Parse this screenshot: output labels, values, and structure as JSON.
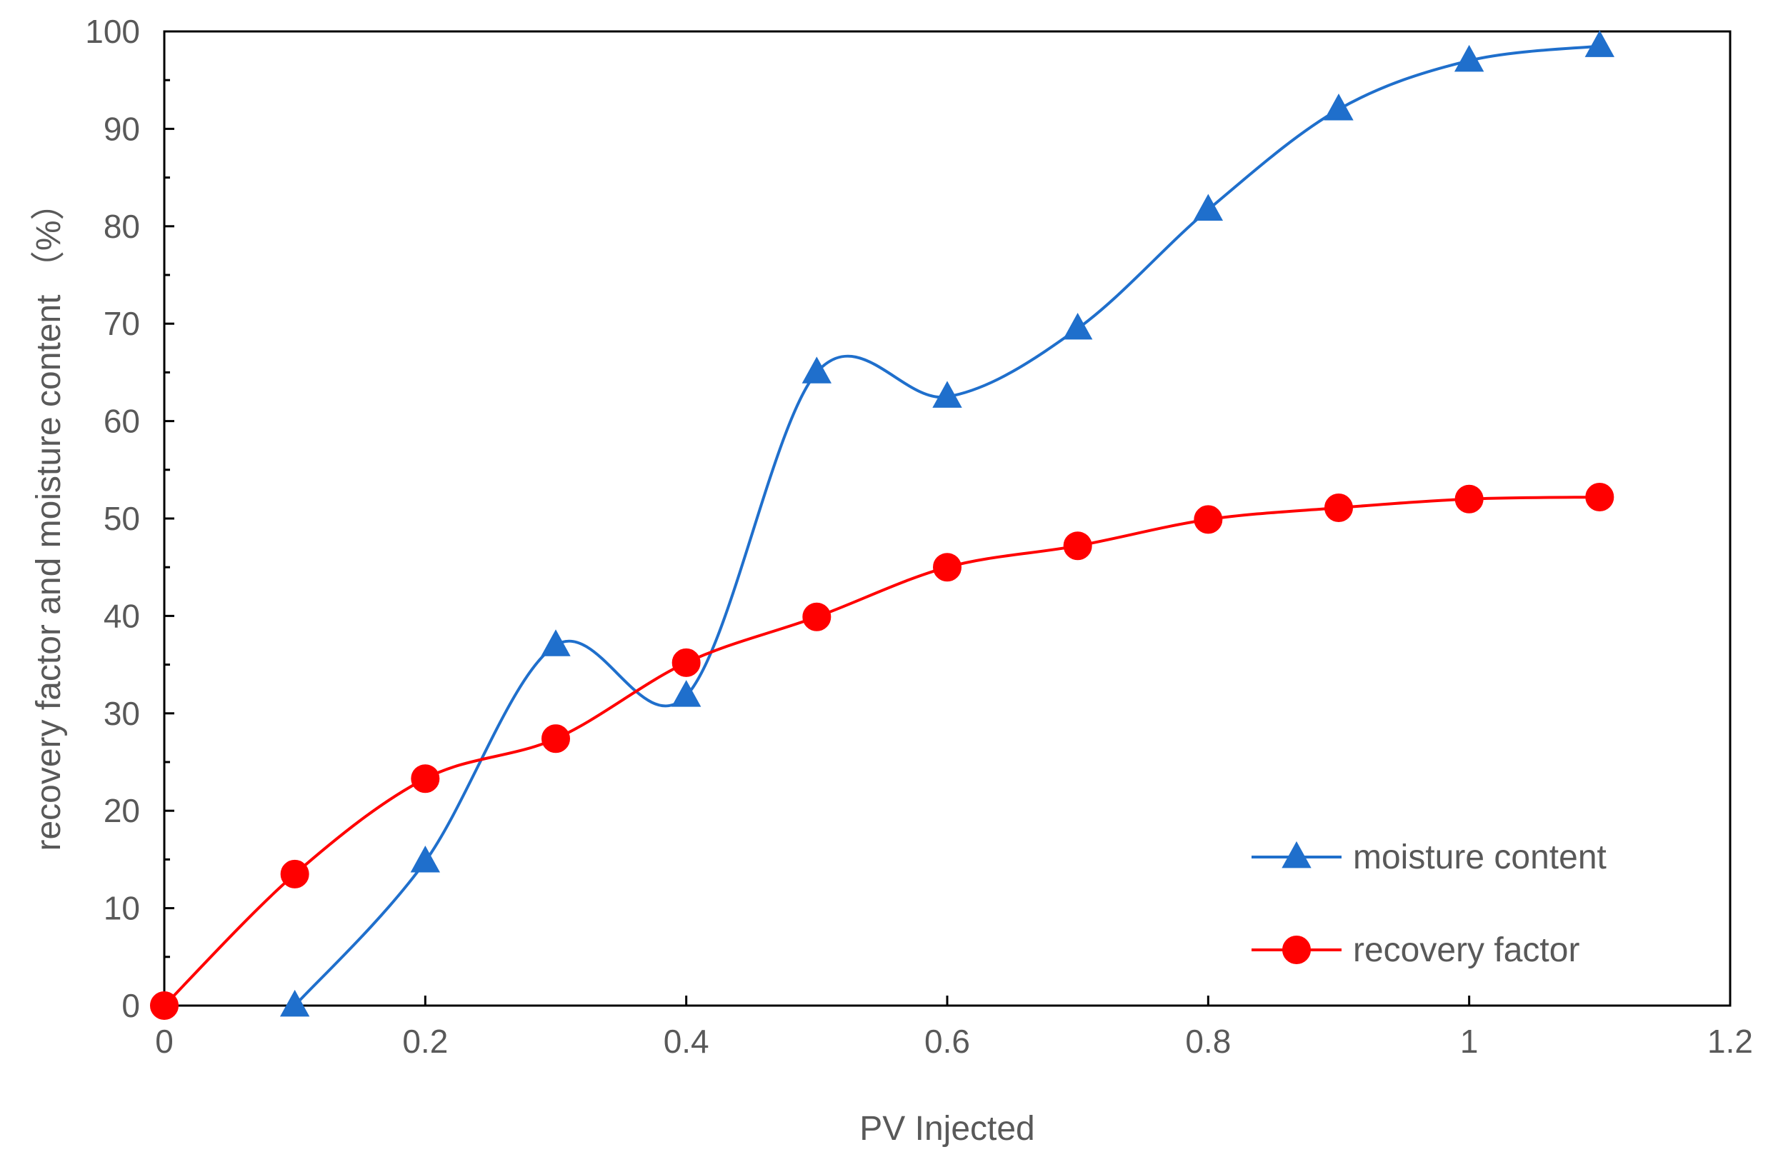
{
  "chart_data": {
    "type": "line",
    "xlabel": "PV Injected",
    "ylabel": "recovery factor and moisture content （%）",
    "xlim": [
      0,
      1.2
    ],
    "ylim": [
      0,
      100
    ],
    "x_ticks": [
      "0",
      "0.2",
      "0.4",
      "0.6",
      "0.8",
      "1",
      "1.2"
    ],
    "y_ticks": [
      "0",
      "10",
      "20",
      "30",
      "40",
      "50",
      "60",
      "70",
      "80",
      "90",
      "100"
    ],
    "x_tick_values": [
      0,
      0.2,
      0.4,
      0.6,
      0.8,
      1.0,
      1.2
    ],
    "y_tick_values": [
      0,
      10,
      20,
      30,
      40,
      50,
      60,
      70,
      80,
      90,
      100
    ],
    "grid": false,
    "smooth": true,
    "legend_position": "bottom-right",
    "series": [
      {
        "name": "moisture content",
        "color": "#1f6fcc",
        "marker": "triangle",
        "x": [
          0.1,
          0.2,
          0.3,
          0.4,
          0.5,
          0.6,
          0.7,
          0.8,
          0.9,
          1.0,
          1.1
        ],
        "y": [
          0,
          14.8,
          37,
          31.8,
          65,
          62.5,
          69.5,
          81.7,
          92,
          97,
          98.5
        ]
      },
      {
        "name": "recovery factor",
        "color": "#ff0000",
        "marker": "circle",
        "x": [
          0,
          0.1,
          0.2,
          0.3,
          0.4,
          0.5,
          0.6,
          0.7,
          0.8,
          0.9,
          1.0,
          1.1
        ],
        "y": [
          0,
          13.5,
          23.3,
          27.4,
          35.2,
          39.9,
          45,
          47.2,
          49.9,
          51.1,
          52,
          52.2
        ]
      }
    ]
  }
}
